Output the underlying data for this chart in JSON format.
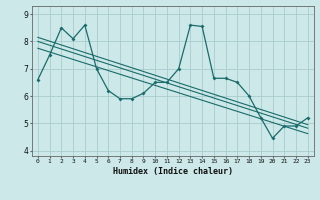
{
  "title": "",
  "xlabel": "Humidex (Indice chaleur)",
  "ylabel": "",
  "bg_color": "#cce8e8",
  "grid_color": "#aacccc",
  "line_color": "#1a6b6b",
  "xlim": [
    -0.5,
    23.5
  ],
  "ylim": [
    3.8,
    9.3
  ],
  "yticks": [
    4,
    5,
    6,
    7,
    8,
    9
  ],
  "xticks": [
    0,
    1,
    2,
    3,
    4,
    5,
    6,
    7,
    8,
    9,
    10,
    11,
    12,
    13,
    14,
    15,
    16,
    17,
    18,
    19,
    20,
    21,
    22,
    23
  ],
  "series": [
    [
      0,
      6.6
    ],
    [
      1,
      7.5
    ],
    [
      2,
      8.5
    ],
    [
      3,
      8.1
    ],
    [
      4,
      8.6
    ],
    [
      5,
      7.0
    ],
    [
      6,
      6.2
    ],
    [
      7,
      5.9
    ],
    [
      8,
      5.9
    ],
    [
      9,
      6.1
    ],
    [
      10,
      6.5
    ],
    [
      11,
      6.5
    ],
    [
      12,
      7.0
    ],
    [
      13,
      8.6
    ],
    [
      14,
      8.55
    ],
    [
      15,
      6.65
    ],
    [
      16,
      6.65
    ],
    [
      17,
      6.5
    ],
    [
      18,
      6.0
    ],
    [
      19,
      5.2
    ],
    [
      20,
      4.45
    ],
    [
      21,
      4.9
    ],
    [
      22,
      4.9
    ],
    [
      23,
      5.2
    ]
  ],
  "regression_lines": [
    [
      [
        0,
        8.15
      ],
      [
        23,
        4.95
      ]
    ],
    [
      [
        0,
        8.0
      ],
      [
        23,
        4.82
      ]
    ],
    [
      [
        0,
        7.75
      ],
      [
        23,
        4.62
      ]
    ]
  ]
}
